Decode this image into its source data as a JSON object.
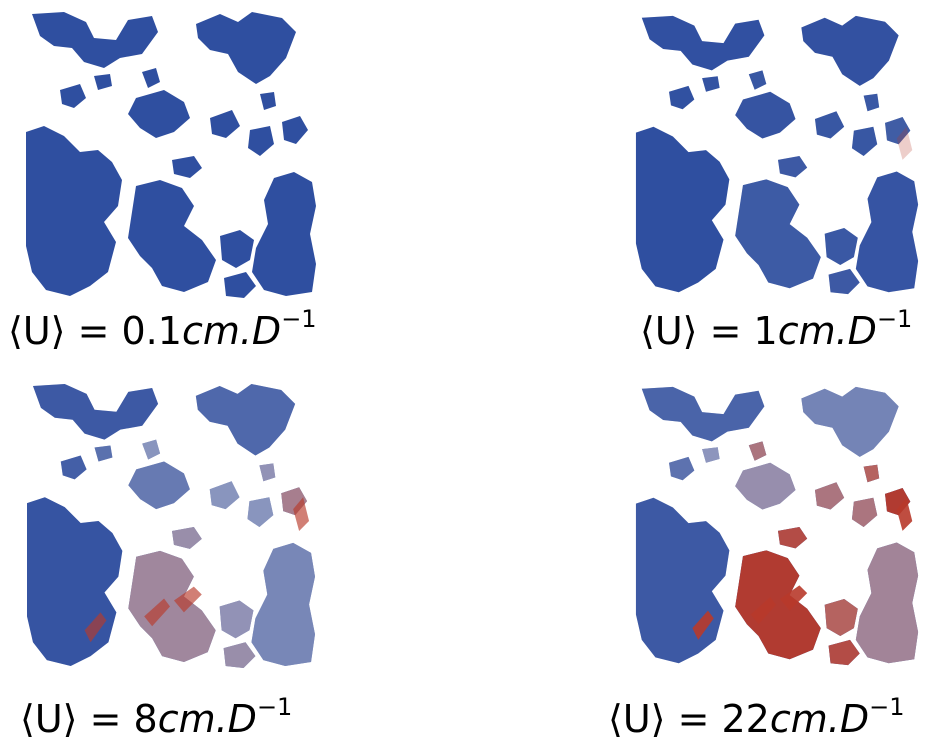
{
  "panels": [
    {
      "id": "p1",
      "label": {
        "lhs": "⟨U⟩",
        "eq": "=",
        "value": "0.1",
        "unit": "cm.D",
        "exp": "−1"
      },
      "velocity_level": 0.05
    },
    {
      "id": "p2",
      "label": {
        "lhs": "⟨U⟩",
        "eq": "=",
        "value": "1",
        "unit": "cm.D",
        "exp": "−1"
      },
      "velocity_level": 0.15
    },
    {
      "id": "p3",
      "label": {
        "lhs": "⟨U⟩",
        "eq": "=",
        "value": "8",
        "unit": "cm.D",
        "exp": "−1"
      },
      "velocity_level": 0.55
    },
    {
      "id": "p4",
      "label": {
        "lhs": "⟨U⟩",
        "eq": "=",
        "value": "22",
        "unit": "cm.D",
        "exp": "−1"
      },
      "velocity_level": 0.85
    }
  ],
  "colors": {
    "low": "#2f4fa0",
    "mid": "#c9c5d2",
    "high": "#b83a2b",
    "background": "#ffffff"
  }
}
